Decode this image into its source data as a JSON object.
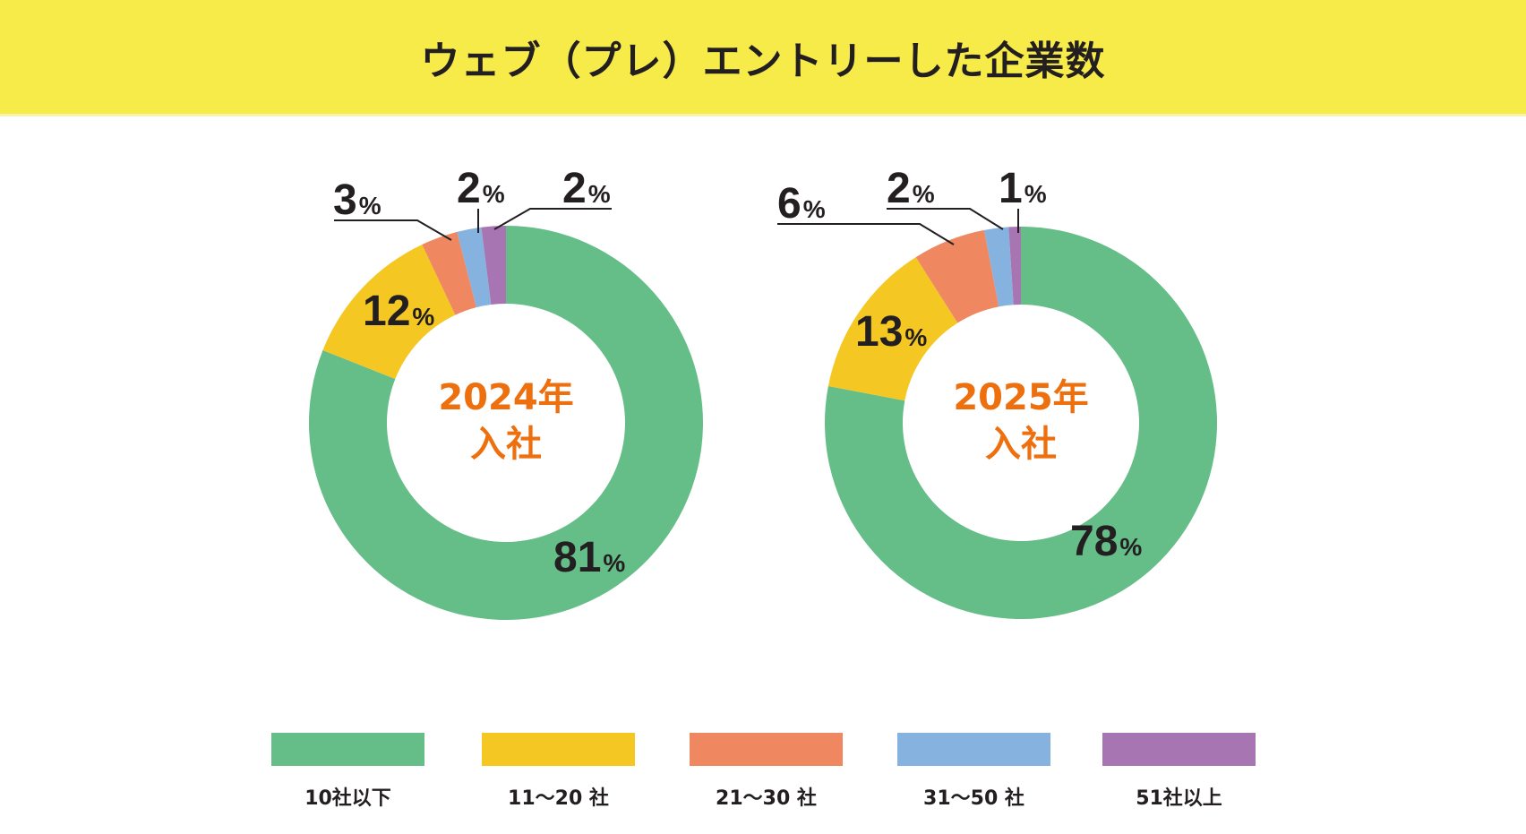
{
  "header": {
    "title": "ウェブ（プレ）エントリーした企業数",
    "background_color": "#f7eb4a"
  },
  "chart_data": [
    {
      "type": "pie",
      "subtype": "donut",
      "title": "2024年入社",
      "center_label": [
        "2024年",
        "入社"
      ],
      "categories": [
        "10社以下",
        "11〜20社",
        "21〜30社",
        "31〜50社",
        "51社以上"
      ],
      "values": [
        81,
        12,
        3,
        2,
        2
      ],
      "unit": "%",
      "labels": [
        "81",
        "12",
        "3",
        "2",
        "2"
      ]
    },
    {
      "type": "pie",
      "subtype": "donut",
      "title": "2025年入社",
      "center_label": [
        "2025年",
        "入社"
      ],
      "categories": [
        "10社以下",
        "11〜20社",
        "21〜30社",
        "31〜50社",
        "51社以上"
      ],
      "values": [
        78,
        13,
        6,
        2,
        1
      ],
      "unit": "%",
      "labels": [
        "78",
        "13",
        "6",
        "2",
        "1"
      ]
    }
  ],
  "legend": {
    "placement": "bottom",
    "items": [
      {
        "label": "10社以下",
        "color": "#65bd88"
      },
      {
        "label": "11〜20 社",
        "color": "#f5c723"
      },
      {
        "label": "21〜30 社",
        "color": "#ef8760"
      },
      {
        "label": "31〜50 社",
        "color": "#86b2df"
      },
      {
        "label": "51社以上",
        "color": "#a775b2"
      }
    ]
  },
  "colors": {
    "series": [
      "#65bd88",
      "#f5c723",
      "#ef8760",
      "#86b2df",
      "#a775b2"
    ],
    "center_text": "#ee6f0e",
    "label_text": "#231f20"
  },
  "percent_sign": "%"
}
